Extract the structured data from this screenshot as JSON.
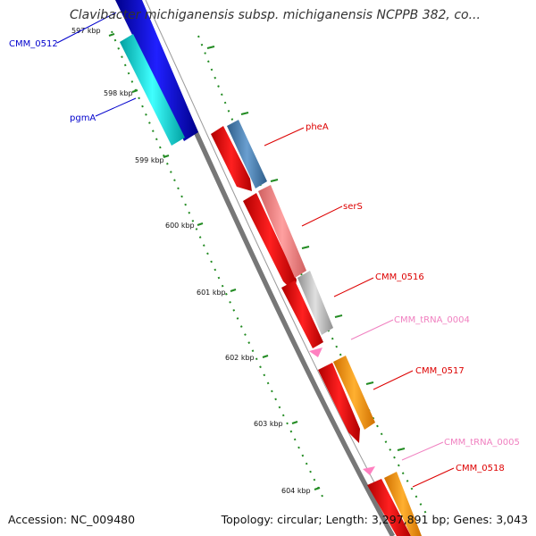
{
  "title": "Clavibacter michiganensis subsp. michiganensis NCPPB 382, co...",
  "footer": {
    "accession": "Accession: NC_009480",
    "topology": "Topology: circular; Length: 3,297,891 bp; Genes: 3,043"
  },
  "ticks": [
    {
      "label": "597 kbp"
    },
    {
      "label": "598 kbp"
    },
    {
      "label": "599 kbp"
    },
    {
      "label": "600 kbp"
    },
    {
      "label": "601 kbp"
    },
    {
      "label": "602 kbp"
    },
    {
      "label": "603 kbp"
    },
    {
      "label": "604 kbp"
    }
  ],
  "genes": [
    {
      "label": "CMM_0512",
      "color": "#0000cc"
    },
    {
      "label": "pgmA",
      "color": "#0000cc"
    },
    {
      "label": "pheA",
      "color": "#dd0000"
    },
    {
      "label": "serS",
      "color": "#dd0000"
    },
    {
      "label": "CMM_0516",
      "color": "#dd0000"
    },
    {
      "label": "CMM_tRNA_0004",
      "color": "#f080c0"
    },
    {
      "label": "CMM_0517",
      "color": "#dd0000"
    },
    {
      "label": "CMM_tRNA_0005",
      "color": "#f080c0"
    },
    {
      "label": "CMM_0518",
      "color": "#dd0000"
    }
  ]
}
